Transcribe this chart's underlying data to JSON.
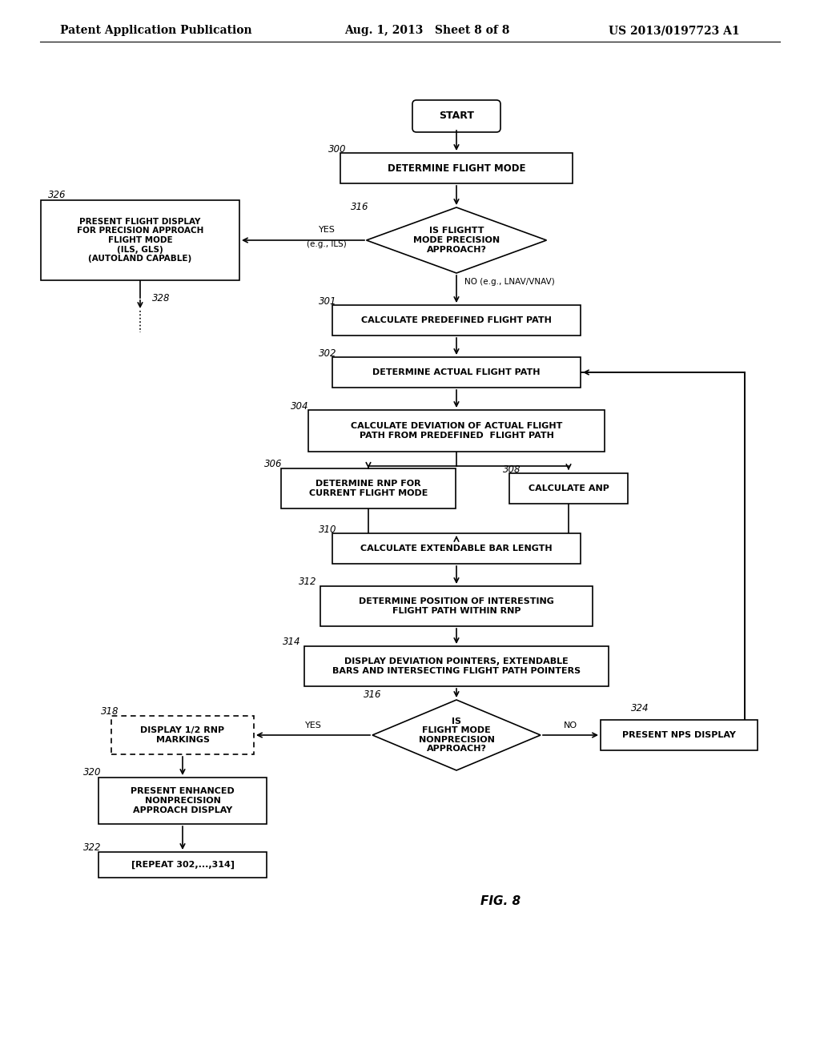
{
  "bg_color": "#ffffff",
  "header_left": "Patent Application Publication",
  "header_mid": "Aug. 1, 2013   Sheet 8 of 8",
  "header_right": "US 2013/0197723 A1",
  "figure_label": "FIG. 8"
}
